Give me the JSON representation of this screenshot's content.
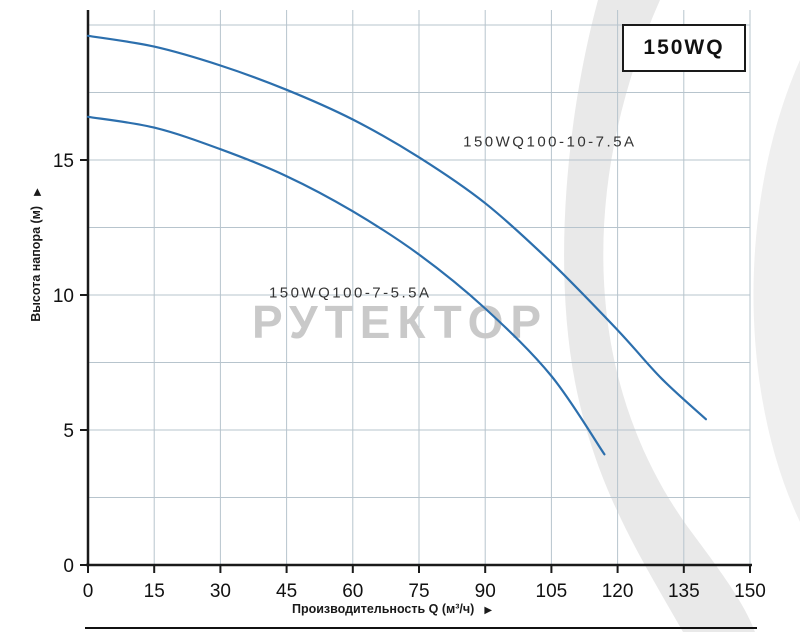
{
  "title_box": {
    "label": "150WQ"
  },
  "watermark": {
    "text": "РУТЕКТОР"
  },
  "icons": {
    "axis_arrow": "▶"
  },
  "chart_data": {
    "type": "line",
    "title": "150WQ",
    "xlabel": "Производительность Q (м³/ч)",
    "ylabel": "Высота напора (м)",
    "xlim": [
      0,
      150
    ],
    "ylim": [
      0,
      20
    ],
    "x_ticks": [
      0,
      15,
      30,
      45,
      60,
      75,
      90,
      105,
      120,
      135,
      150
    ],
    "y_ticks": [
      0,
      5,
      10,
      15
    ],
    "grid": true,
    "grid_x_step": 15,
    "grid_y_step": 2.5,
    "legend_position": "none",
    "series": [
      {
        "name": "150WQ100-10-7.5A",
        "x": [
          0,
          15,
          30,
          45,
          60,
          75,
          90,
          105,
          120,
          130,
          140
        ],
        "y": [
          19.6,
          19.2,
          18.5,
          17.6,
          16.5,
          15.1,
          13.4,
          11.2,
          8.7,
          6.9,
          5.4
        ],
        "label": {
          "q": 85,
          "h": 15.5
        }
      },
      {
        "name": "150WQ100-7-5.5A",
        "x": [
          0,
          15,
          30,
          45,
          60,
          75,
          90,
          105,
          117
        ],
        "y": [
          16.6,
          16.2,
          15.4,
          14.4,
          13.1,
          11.5,
          9.5,
          7.0,
          4.1
        ],
        "label": {
          "q": 41,
          "h": 9.9
        }
      }
    ],
    "colors": {
      "curve": "#2c6fad",
      "grid": "#b7c4cd",
      "axis": "#1a1a1a",
      "tick_text": "#111111",
      "watermark": "#c9c9c9",
      "swoosh": "#e9e9e9",
      "swoosh2": "#efefef",
      "label_text": "#333333"
    }
  }
}
